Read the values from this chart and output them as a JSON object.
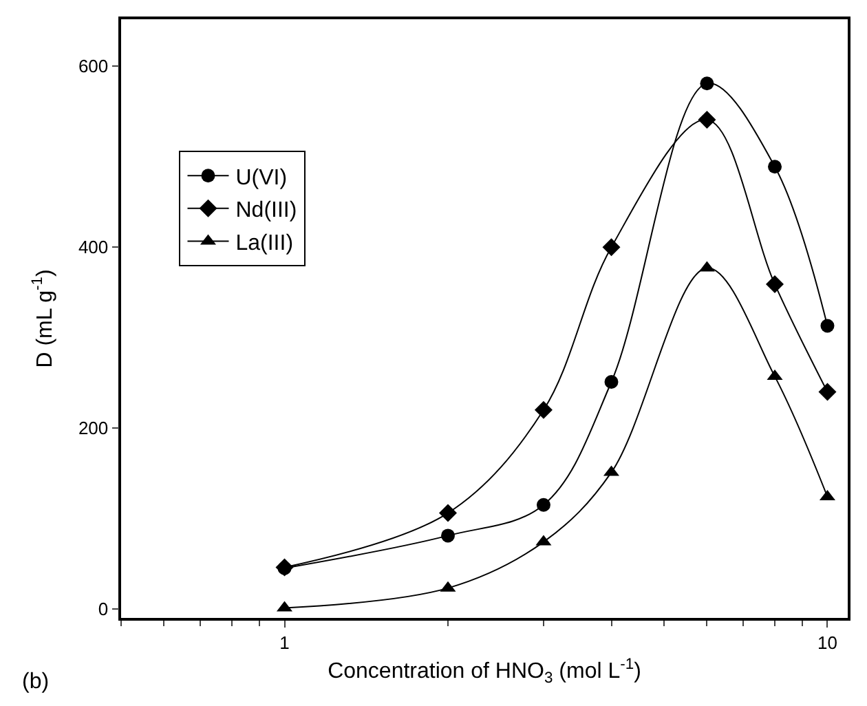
{
  "chart_data": {
    "type": "line",
    "xlabel": "Concentration of HNO$_{3}$ (mol L$^{-1}$)",
    "ylabel": "D (mL g$^{-1}$)",
    "annotations": [
      "(b)"
    ],
    "x": [
      1,
      2,
      3,
      4,
      6,
      8,
      10
    ],
    "log": "x",
    "xlim": [
      0.5,
      10.9
    ],
    "xticks": [
      1,
      10
    ],
    "ylim": [
      -10,
      652
    ],
    "yticks": [
      0,
      200,
      400,
      600
    ],
    "legend": "top left",
    "line_style": "solid",
    "series": [
      {
        "name": "U(VI)",
        "color": "#000000",
        "marker": "circle",
        "values": [
          45,
          81,
          115,
          251,
          581,
          489,
          313
        ]
      },
      {
        "name": "Nd(III)",
        "color": "#000000",
        "marker": "diamond",
        "values": [
          46,
          106,
          220,
          400,
          541,
          359,
          240
        ]
      },
      {
        "name": "La(III)",
        "color": "#000000",
        "marker": "triangle",
        "values": [
          1,
          23,
          74,
          151,
          377,
          257,
          124
        ]
      }
    ]
  }
}
